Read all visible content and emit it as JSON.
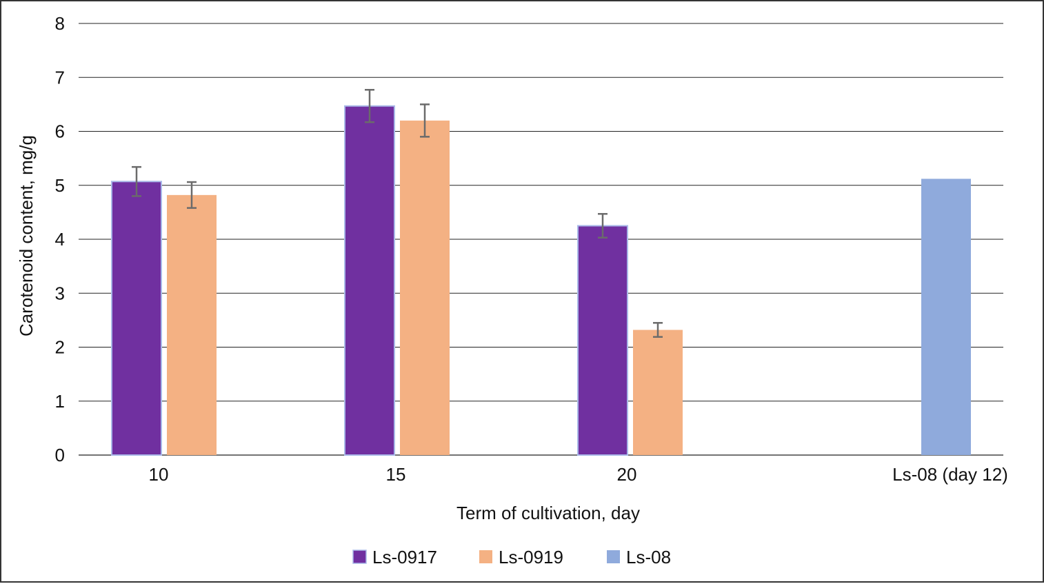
{
  "chart_data": {
    "type": "bar",
    "title": "",
    "xlabel": "Term of cultivation, day",
    "ylabel": "Carotenoid content, mg/g",
    "ylim": [
      0,
      8
    ],
    "yticks": [
      0,
      1,
      2,
      3,
      4,
      5,
      6,
      7,
      8
    ],
    "grid": true,
    "legend_position": "bottom",
    "categories": [
      "10",
      "15",
      "20",
      "Ls-08 (day 12)"
    ],
    "series": [
      {
        "name": "Ls-0917",
        "color": "#7030a0",
        "values": [
          5.07,
          6.47,
          4.25,
          null
        ],
        "errors": [
          0.27,
          0.3,
          0.22,
          null
        ]
      },
      {
        "name": "Ls-0919",
        "color": "#f4b183",
        "values": [
          4.82,
          6.2,
          2.32,
          null
        ],
        "errors": [
          0.24,
          0.3,
          0.13,
          null
        ]
      },
      {
        "name": "Ls-08",
        "color": "#8faadc",
        "values": [
          null,
          null,
          null,
          5.12
        ],
        "errors": [
          null,
          null,
          null,
          null
        ]
      }
    ]
  }
}
